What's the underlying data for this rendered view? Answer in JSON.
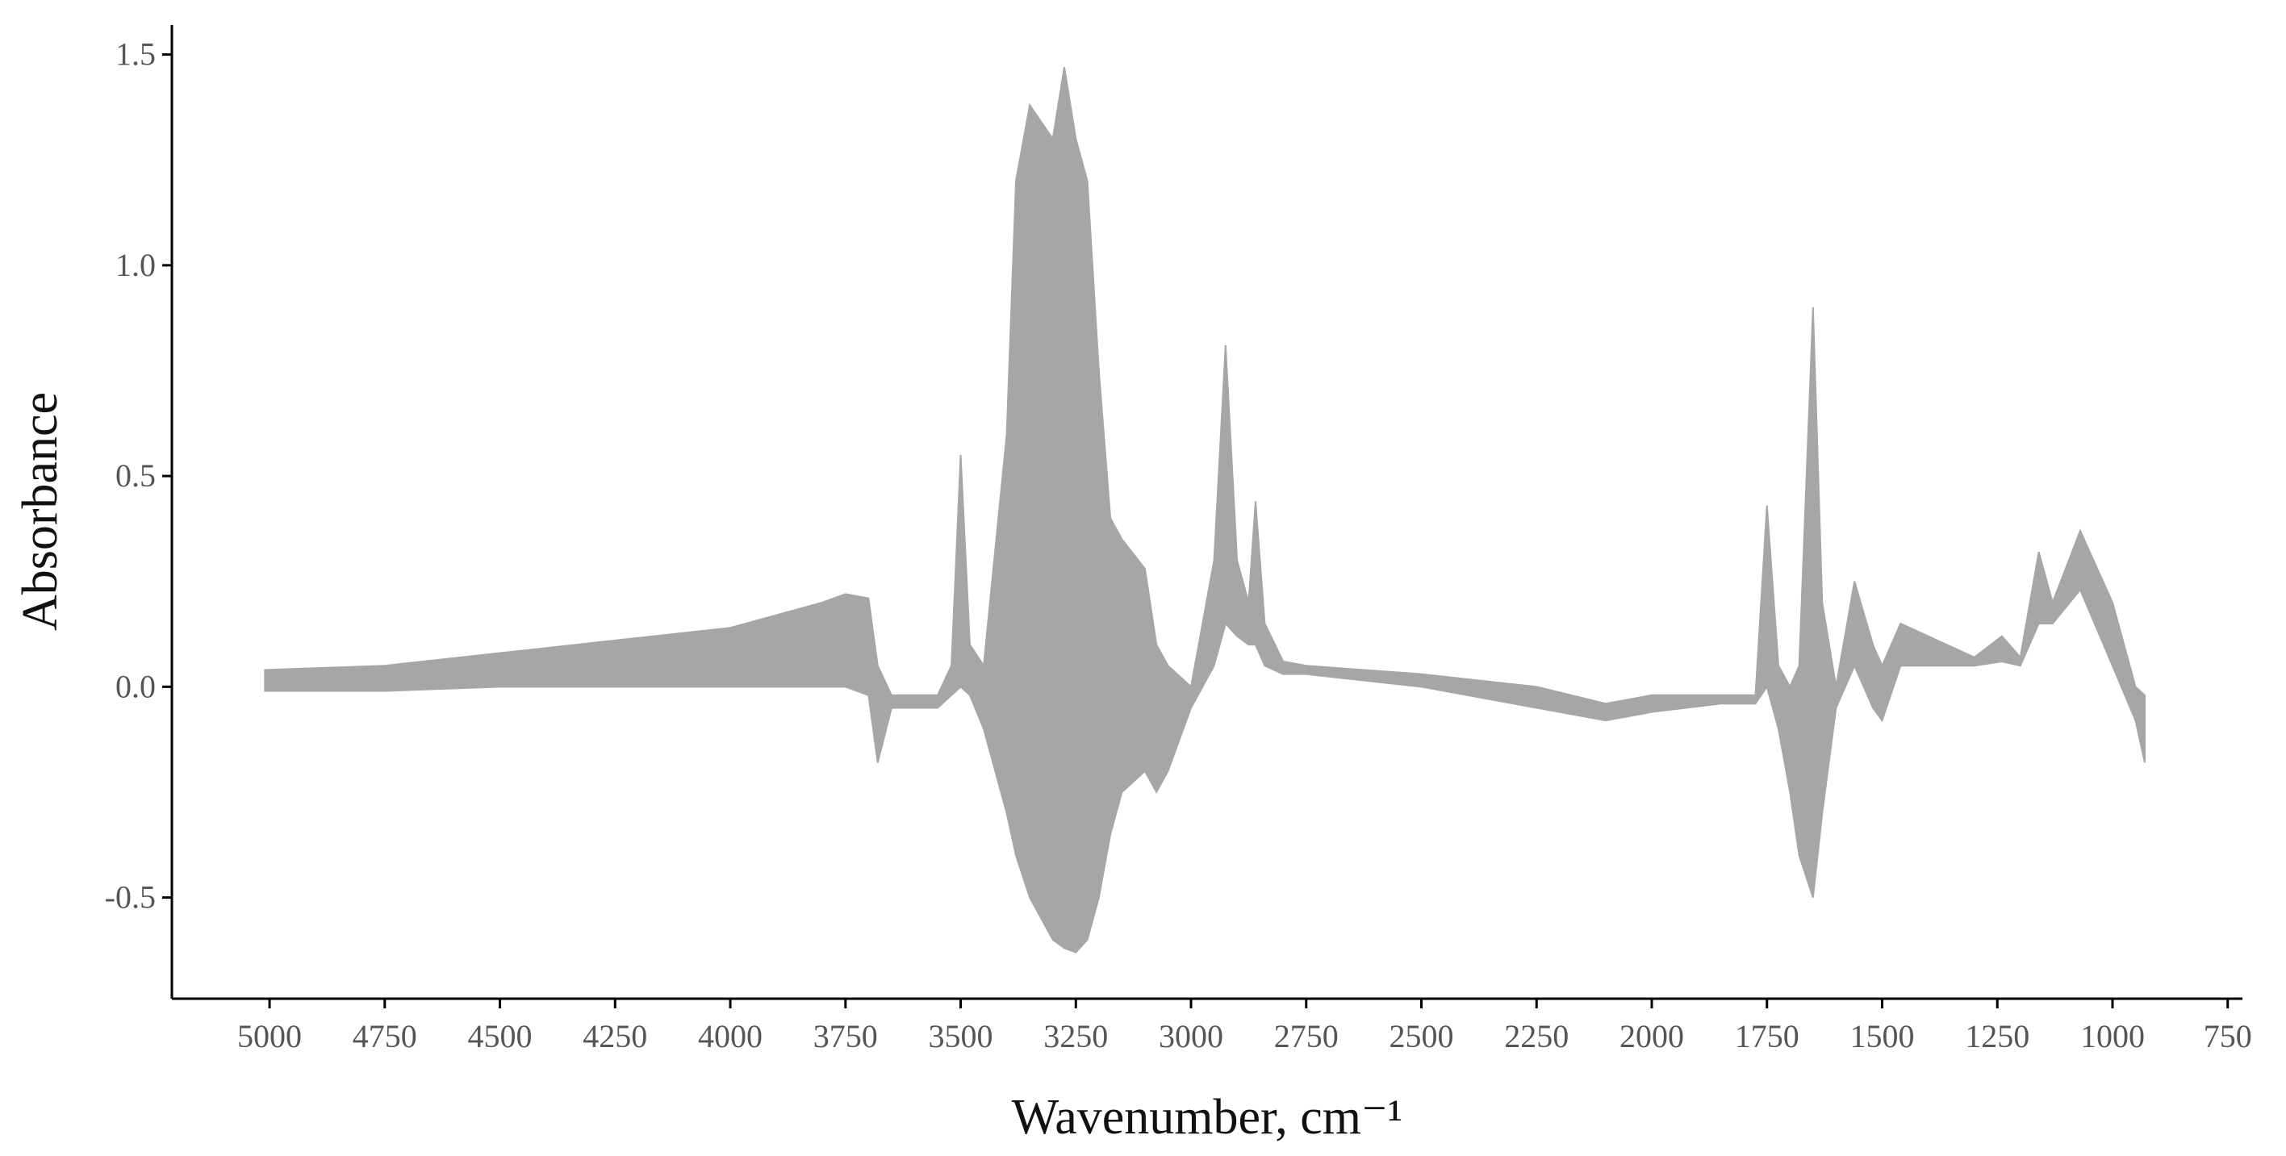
{
  "chart_data": {
    "type": "band",
    "color": "#a6a6a6",
    "x_label": "Wavenumber, cm⁻¹",
    "y_label": "Absorbance",
    "xlim": [
      5212,
      718
    ],
    "ylim": [
      -0.74,
      1.57
    ],
    "xticks": [
      5000,
      4750,
      4500,
      4250,
      4000,
      3750,
      3500,
      3250,
      3000,
      2750,
      2500,
      2250,
      2000,
      1750,
      1500,
      1250,
      1000,
      750
    ],
    "yticks": [
      -0.5,
      {
        "value": 0,
        "label": "0.0"
      },
      0.5,
      {
        "value": 1,
        "label": "1.0"
      },
      1.5
    ],
    "x": [
      5010,
      4750,
      4500,
      4250,
      4000,
      3800,
      3750,
      3700,
      3680,
      3650,
      3550,
      3520,
      3500,
      3480,
      3450,
      3400,
      3380,
      3350,
      3300,
      3275,
      3250,
      3225,
      3200,
      3175,
      3150,
      3100,
      3075,
      3050,
      3000,
      2950,
      2925,
      2900,
      2875,
      2860,
      2840,
      2800,
      2750,
      2500,
      2250,
      2100,
      2000,
      1850,
      1775,
      1750,
      1725,
      1700,
      1680,
      1650,
      1630,
      1600,
      1560,
      1520,
      1500,
      1460,
      1400,
      1300,
      1240,
      1200,
      1160,
      1130,
      1070,
      1000,
      950,
      930
    ],
    "high": [
      0.04,
      0.05,
      0.08,
      0.11,
      0.14,
      0.2,
      0.22,
      0.21,
      0.05,
      -0.02,
      -0.02,
      0.05,
      0.55,
      0.1,
      0.05,
      0.6,
      1.2,
      1.38,
      1.3,
      1.47,
      1.3,
      1.2,
      0.75,
      0.4,
      0.35,
      0.28,
      0.1,
      0.05,
      0.0,
      0.3,
      0.81,
      0.3,
      0.2,
      0.44,
      0.15,
      0.06,
      0.05,
      0.03,
      0.0,
      -0.04,
      -0.02,
      -0.02,
      -0.02,
      0.43,
      0.05,
      0.0,
      0.05,
      0.9,
      0.2,
      0.0,
      0.25,
      0.1,
      0.05,
      0.15,
      0.12,
      0.07,
      0.12,
      0.07,
      0.32,
      0.2,
      0.37,
      0.2,
      0.0,
      -0.02
    ],
    "low": [
      -0.01,
      -0.01,
      0.0,
      0.0,
      0.0,
      0.0,
      0.0,
      -0.02,
      -0.18,
      -0.05,
      -0.05,
      -0.02,
      0.0,
      -0.02,
      -0.1,
      -0.3,
      -0.4,
      -0.5,
      -0.6,
      -0.62,
      -0.63,
      -0.6,
      -0.5,
      -0.35,
      -0.25,
      -0.2,
      -0.25,
      -0.2,
      -0.05,
      0.05,
      0.15,
      0.12,
      0.1,
      0.1,
      0.05,
      0.03,
      0.03,
      0.0,
      -0.05,
      -0.08,
      -0.06,
      -0.04,
      -0.04,
      0.0,
      -0.1,
      -0.25,
      -0.4,
      -0.5,
      -0.3,
      -0.05,
      0.05,
      -0.05,
      -0.08,
      0.05,
      0.05,
      0.05,
      0.06,
      0.05,
      0.15,
      0.15,
      0.23,
      0.05,
      -0.08,
      -0.18
    ]
  }
}
